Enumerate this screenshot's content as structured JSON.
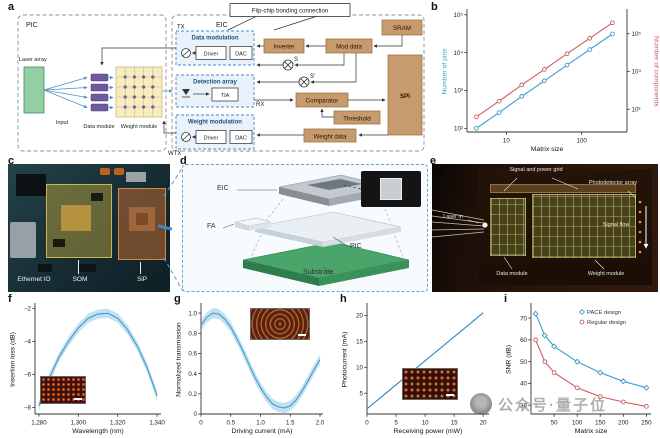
{
  "panel_a": {
    "label": "a",
    "pic": "PIC",
    "eic": "EIC",
    "tx": "TX",
    "rx": "RX",
    "wtx": "WTX",
    "flip_chip": "Flip-chip bonding connection",
    "laser_array": "Laser array",
    "input": "Input",
    "data_module": "Data module",
    "weight_module": "Weight module",
    "data_modulation": "Data modulation",
    "driver1": "Driver",
    "dac1": "DAC",
    "detection_array": "Detection array",
    "tia": "TIA",
    "weight_modulation": "Weight modulation",
    "driver2": "Driver",
    "dac2": "DAC",
    "sram": "SRAM",
    "inverter": "Inverter",
    "mod_data": "Mod data",
    "s": "S",
    "s_prime": "S′",
    "comparator": "Comparator",
    "threshold": "Threshold",
    "spi": "SPI",
    "weight_data": "Weight data"
  },
  "panel_b": {
    "label": "b"
  },
  "panel_c": {
    "label": "c",
    "ethernet_io": "Ethernet IO",
    "som": "SOM",
    "sip": "SiP"
  },
  "panel_d": {
    "label": "d",
    "eic": "EIC",
    "fa": "FA",
    "pic": "PIC",
    "substrate": "Substrate"
  },
  "panel_e": {
    "label": "e",
    "signal_power_grid": "Signal and power grid",
    "photodetector_array": "Photodetector array",
    "laser_in": "Laser in",
    "signal_flow": "Signal flow",
    "data_module": "Data module",
    "weight_module": "Weight module"
  },
  "panel_f": {
    "label": "f"
  },
  "panel_g": {
    "label": "g"
  },
  "panel_h": {
    "label": "h"
  },
  "panel_i": {
    "label": "i"
  },
  "watermark": {
    "text": "公众号·量子位"
  },
  "chart_data": [
    {
      "id": "b",
      "type": "line",
      "xscale": "log",
      "yscale": "log",
      "xlabel": "Matrix size",
      "ylabel": "Number of pins",
      "ylabel_color": "#3d9bd1",
      "ylabel2": "Number of components",
      "ylabel2_color": "#cd5c5c",
      "xlim": [
        3,
        400
      ],
      "ylim": [
        80,
        126000
      ],
      "y2lim": [
        250,
        400000
      ],
      "xticks": [
        [
          10,
          "10"
        ],
        [
          100,
          "100"
        ]
      ],
      "yticks": [
        [
          100,
          "10²"
        ],
        [
          1000,
          "10³"
        ],
        [
          10000,
          "10⁴"
        ],
        [
          100000,
          "10⁵"
        ]
      ],
      "y2ticks": [
        [
          1000,
          "10³"
        ],
        [
          10000,
          "10⁴"
        ],
        [
          100000,
          "10⁵"
        ]
      ],
      "legend": false,
      "series": [
        {
          "name": "Number of pins",
          "axis": "left",
          "color": "#3d9bd1",
          "marker": "circle",
          "x": [
            4,
            8,
            16,
            32,
            64,
            128,
            256
          ],
          "y": [
            100,
            260,
            700,
            1800,
            4700,
            12000,
            31000
          ]
        },
        {
          "name": "Number of components",
          "axis": "right",
          "color": "#cd5c5c",
          "marker": "circle",
          "x": [
            4,
            8,
            16,
            32,
            64,
            128,
            256
          ],
          "y": [
            630,
            1640,
            4410,
            11340,
            29600,
            75600,
            195300
          ]
        }
      ]
    },
    {
      "id": "f",
      "type": "line",
      "xlabel": "Wavelength (nm)",
      "ylabel": "Insertion loss (dB)",
      "xlim": [
        1278,
        1342
      ],
      "ylim": [
        -8.4,
        -1.8
      ],
      "xticks": [
        [
          1280,
          "1,280"
        ],
        [
          1300,
          "1,300"
        ],
        [
          1320,
          "1,320"
        ],
        [
          1340,
          "1,340"
        ]
      ],
      "yticks": [
        [
          -8,
          "−8"
        ],
        [
          -6,
          "−6"
        ],
        [
          -4,
          "−4"
        ],
        [
          -2,
          "−2"
        ]
      ],
      "series": [
        {
          "name": "Insertion loss",
          "color": "#3d9bd1",
          "band": 0.28,
          "x": [
            1280,
            1285,
            1290,
            1295,
            1300,
            1305,
            1310,
            1315,
            1320,
            1325,
            1330,
            1335,
            1340
          ],
          "y": [
            -7.9,
            -6.3,
            -5.0,
            -4.0,
            -3.2,
            -2.6,
            -2.35,
            -2.3,
            -2.6,
            -3.3,
            -4.3,
            -5.6,
            -7.3
          ]
        }
      ]
    },
    {
      "id": "g",
      "type": "line",
      "xlabel": "Driving current (mA)",
      "ylabel": "Normalized transmission",
      "xlim": [
        0,
        2.05
      ],
      "ylim": [
        0,
        1.08
      ],
      "xticks": [
        [
          0,
          "0"
        ],
        [
          0.5,
          "0.5"
        ],
        [
          1.0,
          "1.0"
        ],
        [
          1.5,
          "1.5"
        ],
        [
          2.0,
          "2.0"
        ]
      ],
      "yticks": [
        [
          0,
          "0"
        ],
        [
          0.2,
          "0.2"
        ],
        [
          0.4,
          "0.4"
        ],
        [
          0.6,
          "0.6"
        ],
        [
          0.8,
          "0.8"
        ],
        [
          1.0,
          "1.0"
        ]
      ],
      "series": [
        {
          "name": "Normalized transmission",
          "color": "#3d9bd1",
          "band": 0.05,
          "x": [
            0,
            0.1,
            0.2,
            0.3,
            0.4,
            0.5,
            0.6,
            0.7,
            0.8,
            0.9,
            1.0,
            1.1,
            1.2,
            1.3,
            1.4,
            1.5,
            1.6,
            1.7,
            1.8,
            1.9,
            2.0
          ],
          "y": [
            0.88,
            0.96,
            1.0,
            0.99,
            0.94,
            0.86,
            0.75,
            0.63,
            0.5,
            0.37,
            0.26,
            0.17,
            0.1,
            0.07,
            0.06,
            0.08,
            0.14,
            0.23,
            0.33,
            0.44,
            0.54
          ]
        }
      ]
    },
    {
      "id": "h",
      "type": "line",
      "xlabel": "Receiving power (mW)",
      "ylabel": "Photocurrent (mA)",
      "xlim": [
        0,
        21
      ],
      "ylim": [
        1,
        22
      ],
      "xticks": [
        [
          0,
          "0"
        ],
        [
          5,
          "5"
        ],
        [
          10,
          "10"
        ],
        [
          15,
          "15"
        ],
        [
          20,
          "20"
        ]
      ],
      "yticks": [
        [
          5,
          "5"
        ],
        [
          10,
          "10"
        ],
        [
          15,
          "15"
        ],
        [
          20,
          "20"
        ]
      ],
      "series": [
        {
          "name": "Photocurrent",
          "color": "#2e86c1",
          "x": [
            0,
            20
          ],
          "y": [
            2.0,
            20.5
          ]
        }
      ]
    },
    {
      "id": "i",
      "type": "line",
      "xlabel": "Matrix size",
      "ylabel": "SNR (dB)",
      "xlim": [
        0,
        260
      ],
      "ylim": [
        26,
        76
      ],
      "xticks": [
        [
          50,
          "50"
        ],
        [
          100,
          "100"
        ],
        [
          150,
          "150"
        ],
        [
          200,
          "200"
        ],
        [
          250,
          "250"
        ]
      ],
      "yticks": [
        [
          30,
          "30"
        ],
        [
          40,
          "40"
        ],
        [
          50,
          "50"
        ],
        [
          60,
          "60"
        ],
        [
          70,
          "70"
        ]
      ],
      "legend": true,
      "series": [
        {
          "name": "PACE design",
          "color": "#3d9bd1",
          "marker": "diamond",
          "x": [
            10,
            30,
            50,
            100,
            150,
            200,
            250
          ],
          "y": [
            72,
            62,
            57,
            50,
            45,
            41,
            38
          ]
        },
        {
          "name": "Regular design",
          "color": "#cd5c5c",
          "marker": "circle",
          "x": [
            10,
            30,
            50,
            100,
            150,
            200,
            250
          ],
          "y": [
            60,
            50,
            45,
            38,
            34,
            31.5,
            29.5
          ]
        }
      ]
    }
  ]
}
